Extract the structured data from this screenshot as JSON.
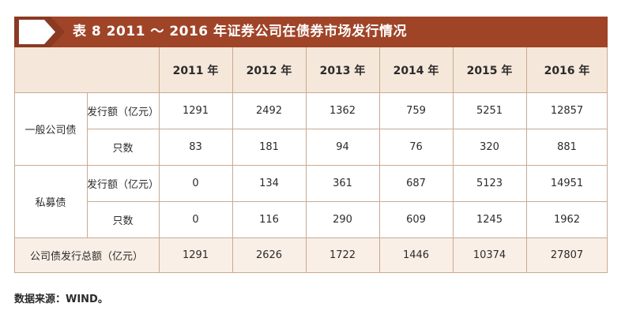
{
  "title": "表 8  2011 ～ 2016 年证券公司在债券市场发行情况",
  "years": [
    "2011 年",
    "2012 年",
    "2013 年",
    "2014 年",
    "2015 年",
    "2016 年"
  ],
  "groups": [
    {
      "name": "一般公司债",
      "rows": [
        {
          "label": "发行额（亿元）",
          "values": [
            "1291",
            "2492",
            "1362",
            "759",
            "5251",
            "12857"
          ]
        },
        {
          "label": "只数",
          "values": [
            "83",
            "181",
            "94",
            "76",
            "320",
            "881"
          ]
        }
      ]
    },
    {
      "name": "私募债",
      "rows": [
        {
          "label": "发行额（亿元）",
          "values": [
            "0",
            "134",
            "361",
            "687",
            "5123",
            "14951"
          ]
        },
        {
          "label": "只数",
          "values": [
            "0",
            "116",
            "290",
            "609",
            "1245",
            "1962"
          ]
        }
      ]
    }
  ],
  "total": {
    "label": "公司债发行总额（亿元）",
    "values": [
      "1291",
      "2626",
      "1722",
      "1446",
      "10374",
      "27807"
    ]
  },
  "source": "数据来源：WIND。",
  "colors": {
    "title_bar": "#a04428",
    "header_bg": "#f5e7da",
    "border": "#c9aa92"
  }
}
